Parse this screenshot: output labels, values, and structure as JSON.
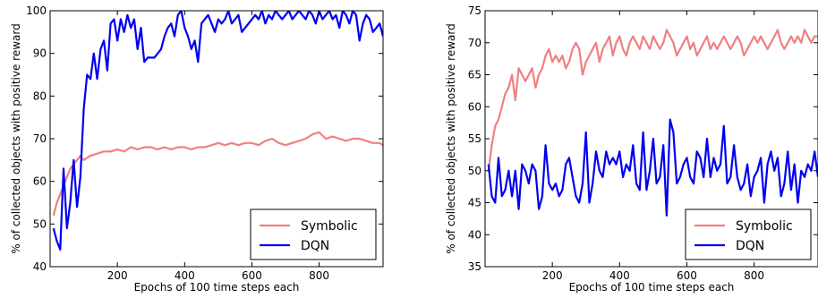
{
  "chart_data": [
    {
      "type": "line",
      "xlabel": "Epochs of 100 time steps each",
      "ylabel": "% of collected objects with positive reward",
      "xlim": [
        0,
        990
      ],
      "ylim": [
        40,
        100
      ],
      "xticks": [
        200,
        400,
        600,
        800
      ],
      "yticks": [
        40,
        50,
        60,
        70,
        80,
        90,
        100
      ],
      "grid": false,
      "legend_position": "bottom-right",
      "series": [
        {
          "name": "Symbolic",
          "color": "#f08080",
          "x": [
            10,
            20,
            30,
            40,
            50,
            60,
            70,
            80,
            90,
            100,
            120,
            140,
            160,
            180,
            200,
            220,
            240,
            260,
            280,
            300,
            320,
            340,
            360,
            380,
            400,
            420,
            440,
            460,
            480,
            500,
            520,
            540,
            560,
            580,
            600,
            620,
            640,
            660,
            680,
            700,
            720,
            740,
            760,
            780,
            800,
            820,
            840,
            860,
            880,
            900,
            920,
            940,
            960,
            980,
            990
          ],
          "y": [
            52,
            55,
            57,
            59,
            61,
            63,
            64,
            65,
            66,
            65,
            66,
            66.5,
            67,
            67,
            67.5,
            67,
            68,
            67.5,
            68,
            68,
            67.5,
            68,
            67.5,
            68,
            68,
            67.5,
            68,
            68,
            68.5,
            69,
            68.5,
            69,
            68.5,
            69,
            69,
            68.5,
            69.5,
            70,
            69,
            68.5,
            69,
            69.5,
            70,
            71,
            71.5,
            70,
            70.5,
            70,
            69.5,
            70,
            70,
            69.5,
            69,
            69,
            68.5
          ]
        },
        {
          "name": "DQN",
          "color": "#0000ee",
          "x": [
            10,
            20,
            30,
            40,
            50,
            60,
            70,
            80,
            90,
            100,
            110,
            120,
            130,
            140,
            150,
            160,
            170,
            180,
            190,
            200,
            210,
            220,
            230,
            240,
            250,
            260,
            270,
            280,
            290,
            300,
            310,
            320,
            330,
            340,
            350,
            360,
            370,
            380,
            390,
            400,
            410,
            420,
            430,
            440,
            450,
            460,
            470,
            480,
            490,
            500,
            510,
            520,
            530,
            540,
            550,
            560,
            570,
            580,
            590,
            600,
            610,
            620,
            630,
            640,
            650,
            660,
            670,
            680,
            690,
            700,
            710,
            720,
            730,
            740,
            750,
            760,
            770,
            780,
            790,
            800,
            810,
            820,
            830,
            840,
            850,
            860,
            870,
            880,
            890,
            900,
            910,
            920,
            930,
            940,
            950,
            960,
            970,
            980,
            990
          ],
          "y": [
            49,
            46,
            44,
            63,
            49,
            55,
            65,
            54,
            61,
            77,
            85,
            84,
            90,
            84,
            91,
            93,
            86,
            97,
            98,
            93,
            98,
            95,
            99,
            96,
            98,
            91,
            96,
            88,
            89,
            89,
            89,
            90,
            91,
            94,
            96,
            97,
            94,
            99,
            100,
            96,
            94,
            91,
            93,
            88,
            97,
            98,
            99,
            97,
            95,
            98,
            97,
            98,
            100,
            97,
            98,
            99,
            95,
            96,
            97,
            98,
            99,
            98,
            100,
            97,
            99,
            98,
            100,
            99,
            98,
            99,
            100,
            98,
            99,
            100,
            99,
            98,
            100,
            99,
            97,
            100,
            98,
            99,
            100,
            98,
            99,
            96,
            100,
            99,
            97,
            100,
            99,
            93,
            97,
            99,
            98,
            95,
            96,
            97,
            94
          ]
        }
      ]
    },
    {
      "type": "line",
      "xlabel": "Epochs of 100 time steps each",
      "ylabel": "% of collected objects with positive reward",
      "xlim": [
        0,
        990
      ],
      "ylim": [
        35,
        75
      ],
      "xticks": [
        200,
        400,
        600,
        800
      ],
      "yticks": [
        35,
        40,
        45,
        50,
        55,
        60,
        65,
        70,
        75
      ],
      "grid": false,
      "legend_position": "bottom-right",
      "series": [
        {
          "name": "Symbolic",
          "color": "#f08080",
          "x": [
            10,
            20,
            30,
            40,
            50,
            60,
            70,
            80,
            90,
            100,
            110,
            120,
            130,
            140,
            150,
            160,
            170,
            180,
            190,
            200,
            210,
            220,
            230,
            240,
            250,
            260,
            270,
            280,
            290,
            300,
            310,
            320,
            330,
            340,
            350,
            360,
            370,
            380,
            390,
            400,
            410,
            420,
            430,
            440,
            450,
            460,
            470,
            480,
            490,
            500,
            510,
            520,
            530,
            540,
            550,
            560,
            570,
            580,
            590,
            600,
            610,
            620,
            630,
            640,
            650,
            660,
            670,
            680,
            690,
            700,
            710,
            720,
            730,
            740,
            750,
            760,
            770,
            780,
            790,
            800,
            810,
            820,
            830,
            840,
            850,
            860,
            870,
            880,
            890,
            900,
            910,
            920,
            930,
            940,
            950,
            960,
            970,
            980,
            990
          ],
          "y": [
            50,
            54,
            57,
            58,
            60,
            62,
            63,
            65,
            61,
            66,
            65,
            64,
            65,
            66,
            63,
            65,
            66,
            68,
            69,
            67,
            68,
            67,
            68,
            66,
            67,
            69,
            70,
            69,
            65,
            67,
            68,
            69,
            70,
            67,
            69,
            70,
            71,
            68,
            70,
            71,
            69,
            68,
            70,
            71,
            70,
            69,
            71,
            70,
            69,
            71,
            70,
            69,
            70,
            72,
            71,
            70,
            68,
            69,
            70,
            71,
            69,
            70,
            68,
            69,
            70,
            71,
            69,
            70,
            69,
            70,
            71,
            70,
            69,
            70,
            71,
            70,
            68,
            69,
            70,
            71,
            70,
            71,
            70,
            69,
            70,
            71,
            72,
            70,
            69,
            70,
            71,
            70,
            71,
            70,
            72,
            71,
            70,
            71,
            71
          ]
        },
        {
          "name": "DQN",
          "color": "#0000ee",
          "x": [
            10,
            20,
            30,
            40,
            50,
            60,
            70,
            80,
            90,
            100,
            110,
            120,
            130,
            140,
            150,
            160,
            170,
            180,
            190,
            200,
            210,
            220,
            230,
            240,
            250,
            260,
            270,
            280,
            290,
            300,
            310,
            320,
            330,
            340,
            350,
            360,
            370,
            380,
            390,
            400,
            410,
            420,
            430,
            440,
            450,
            460,
            470,
            480,
            490,
            500,
            510,
            520,
            530,
            540,
            550,
            560,
            570,
            580,
            590,
            600,
            610,
            620,
            630,
            640,
            650,
            660,
            670,
            680,
            690,
            700,
            710,
            720,
            730,
            740,
            750,
            760,
            770,
            780,
            790,
            800,
            810,
            820,
            830,
            840,
            850,
            860,
            870,
            880,
            890,
            900,
            910,
            920,
            930,
            940,
            950,
            960,
            970,
            980,
            990
          ],
          "y": [
            51,
            46,
            45,
            52,
            46,
            47,
            50,
            46,
            50,
            44,
            51,
            50,
            48,
            51,
            50,
            44,
            46,
            54,
            48,
            47,
            48,
            46,
            47,
            51,
            52,
            49,
            46,
            45,
            48,
            56,
            45,
            48,
            53,
            50,
            49,
            53,
            51,
            52,
            51,
            53,
            49,
            51,
            50,
            54,
            48,
            47,
            56,
            47,
            50,
            55,
            48,
            49,
            54,
            43,
            58,
            56,
            48,
            49,
            51,
            52,
            49,
            48,
            53,
            52,
            49,
            55,
            49,
            52,
            50,
            51,
            57,
            48,
            49,
            54,
            49,
            47,
            48,
            51,
            46,
            49,
            50,
            52,
            45,
            51,
            53,
            50,
            52,
            46,
            48,
            53,
            47,
            51,
            45,
            50,
            49,
            51,
            50,
            53,
            49
          ]
        }
      ]
    }
  ]
}
